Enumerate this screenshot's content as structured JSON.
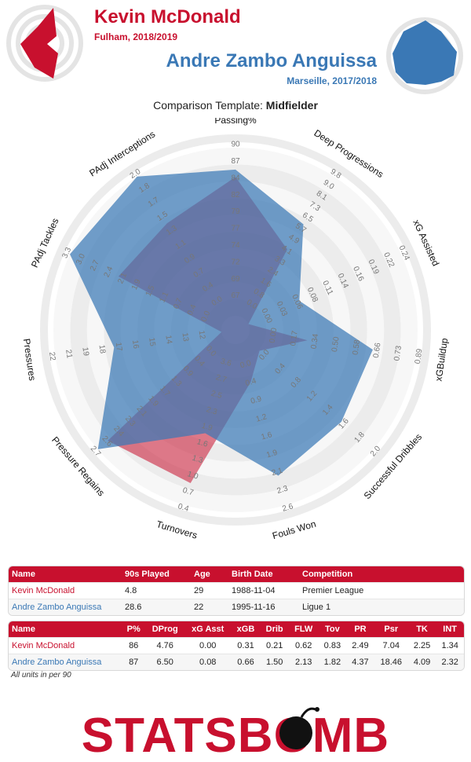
{
  "header": {
    "player1": {
      "name": "Kevin McDonald",
      "subtitle": "Fulham, 2018/2019",
      "color": "#c8102e"
    },
    "player2": {
      "name": "Andre Zambo Anguissa",
      "subtitle": "Marseille, 2017/2018",
      "color": "#3a78b5"
    },
    "template_prefix": "Comparison Template: ",
    "template_name": "Midfielder"
  },
  "chart_data": {
    "type": "radar",
    "axes": [
      {
        "label": "Passing%",
        "min": 67,
        "max": 90,
        "ticks": [
          "67",
          "69",
          "72",
          "74",
          "77",
          "79",
          "82",
          "84",
          "87",
          "90"
        ]
      },
      {
        "label": "Deep Progressions",
        "min": 0,
        "max": 9.8,
        "ticks": [
          "0.0",
          "0.8",
          "1.6",
          "2.4",
          "3.3",
          "4.1",
          "4.9",
          "5.7",
          "6.5",
          "7.3",
          "8.1",
          "9.0",
          "9.8"
        ]
      },
      {
        "label": "xG Assisted",
        "min": 0,
        "max": 0.24,
        "ticks": [
          "0.00",
          "0.03",
          "0.06",
          "0.08",
          "0.11",
          "0.14",
          "0.16",
          "0.19",
          "0.22",
          "0.24"
        ]
      },
      {
        "label": "xGBuildup",
        "min": 0,
        "max": 0.89,
        "ticks": [
          "0.00",
          "0.17",
          "0.34",
          "0.50",
          "0.58",
          "0.66",
          "0.73",
          "0.89"
        ]
      },
      {
        "label": "Successful Dribbles",
        "min": 0,
        "max": 2.0,
        "ticks": [
          "0.0",
          "0.4",
          "0.8",
          "1.2",
          "1.4",
          "1.6",
          "1.8",
          "2.0"
        ]
      },
      {
        "label": "Fouls Won",
        "min": 0,
        "max": 2.6,
        "ticks": [
          "0.0",
          "0.4",
          "0.9",
          "1.2",
          "1.6",
          "1.9",
          "2.1",
          "2.3",
          "2.6"
        ]
      },
      {
        "label": "Turnovers",
        "min": 3.6,
        "max": 0.4,
        "inverted": true,
        "ticks": [
          "3.6",
          "2.7",
          "2.5",
          "2.3",
          "1.9",
          "1.6",
          "1.3",
          "1.0",
          "0.7",
          "0.4"
        ]
      },
      {
        "label": "Pressure Regains",
        "min": 0,
        "max": 2.7,
        "ticks": [
          "0.0",
          "0.4",
          "0.9",
          "1.3",
          "1.7",
          "1.9",
          "2.1",
          "2.3",
          "2.4",
          "2.6",
          "2.7"
        ]
      },
      {
        "label": "Pressures",
        "min": 12,
        "max": 22,
        "ticks": [
          "12",
          "13",
          "14",
          "15",
          "16",
          "17",
          "18",
          "19",
          "21",
          "22"
        ]
      },
      {
        "label": "PAdj Tackles",
        "min": 0,
        "max": 3.3,
        "ticks": [
          "0.0",
          "0.4",
          "0.7",
          "1.1",
          "1.5",
          "1.9",
          "2.1",
          "2.4",
          "2.7",
          "3.0",
          "3.3"
        ]
      },
      {
        "label": "PAdj Interceptions",
        "min": 0,
        "max": 2.0,
        "ticks": [
          "0.0",
          "0.4",
          "0.7",
          "0.9",
          "1.1",
          "1.3",
          "1.5",
          "1.7",
          "1.8",
          "2.0"
        ]
      }
    ],
    "series": [
      {
        "name": "Kevin McDonald",
        "color": "#c8102e",
        "values": [
          86,
          4.76,
          0.0,
          0.31,
          0.21,
          0.62,
          0.83,
          2.49,
          7.04,
          2.25,
          1.34
        ]
      },
      {
        "name": "Andre Zambo Anguissa",
        "color": "#3a78b5",
        "values": [
          87,
          6.5,
          0.08,
          0.66,
          1.5,
          2.13,
          1.82,
          4.37,
          18.46,
          4.09,
          2.32
        ]
      }
    ]
  },
  "table1": {
    "headers": [
      "Name",
      "90s Played",
      "Age",
      "Birth Date",
      "Competition"
    ],
    "rows": [
      [
        "Kevin McDonald",
        "4.8",
        "29",
        "1988-11-04",
        "Premier League"
      ],
      [
        "Andre Zambo Anguissa",
        "28.6",
        "22",
        "1995-11-16",
        "Ligue 1"
      ]
    ]
  },
  "table2": {
    "headers": [
      "Name",
      "P%",
      "DProg",
      "xG Asst",
      "xGB",
      "Drib",
      "FLW",
      "Tov",
      "PR",
      "Psr",
      "TK",
      "INT"
    ],
    "rows": [
      [
        "Kevin McDonald",
        "86",
        "4.76",
        "0.00",
        "0.31",
        "0.21",
        "0.62",
        "0.83",
        "2.49",
        "7.04",
        "2.25",
        "1.34"
      ],
      [
        "Andre Zambo Anguissa",
        "87",
        "6.50",
        "0.08",
        "0.66",
        "1.50",
        "2.13",
        "1.82",
        "4.37",
        "18.46",
        "4.09",
        "2.32"
      ]
    ]
  },
  "footnote": "All units in per 90",
  "logo": {
    "text": "STATSBOMB",
    "color": "#c8102e"
  }
}
